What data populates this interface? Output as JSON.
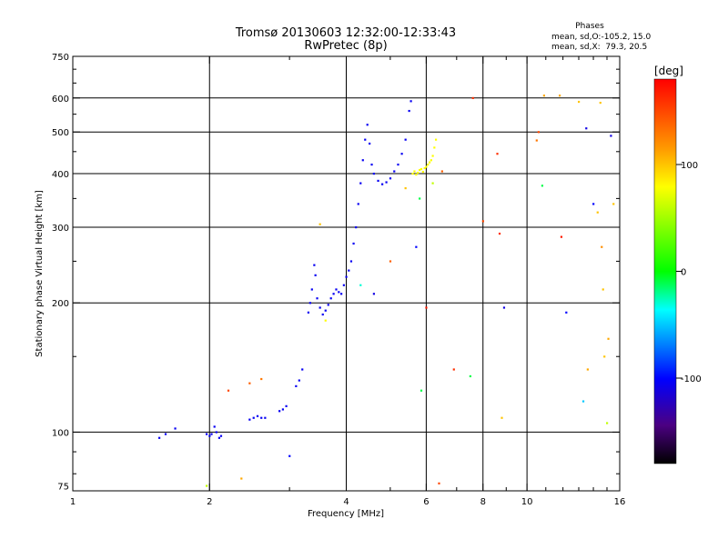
{
  "chart_data": {
    "type": "scatter",
    "title": "Tromsø 20130603 12:32:00-12:33:43",
    "subtitle": "RwPretec (8p)",
    "phases_header": "Phases",
    "phases_line1": "mean, sd,O:-105.2, 15.0",
    "phases_line2": "mean, sd,X:  79.3, 20.5",
    "xlabel": "Frequency [MHz]",
    "ylabel": "Stationary phase Virtual Height [km]",
    "xscale": "log",
    "yscale": "log",
    "xlim": [
      1,
      16
    ],
    "ylim": [
      73,
      750
    ],
    "xticks": [
      1,
      2,
      4,
      6,
      8,
      10,
      16
    ],
    "xtick_labels": [
      "1",
      "2",
      "4",
      "6",
      "8",
      "10",
      "16"
    ],
    "yticks": [
      75,
      100,
      200,
      300,
      400,
      500,
      600,
      750
    ],
    "ytick_labels": [
      "75",
      "100",
      "200",
      "300",
      "400",
      "500",
      "600",
      "750"
    ],
    "x_gridlines": [
      2,
      4,
      6,
      8,
      10
    ],
    "y_gridlines": [
      100,
      200,
      300,
      400,
      500,
      600
    ],
    "colorbar": {
      "label": "[deg]",
      "range": [
        -180,
        180
      ],
      "ticks": [
        100,
        0,
        -100
      ],
      "tick_labels": [
        "100",
        "0",
        "-100"
      ]
    },
    "series": [
      {
        "trace": "ordinary",
        "phase": -105,
        "points": [
          [
            1.55,
            97
          ],
          [
            1.6,
            99
          ],
          [
            1.68,
            102
          ],
          [
            1.97,
            99
          ],
          [
            2.0,
            98
          ],
          [
            2.02,
            99
          ],
          [
            2.05,
            103
          ],
          [
            2.07,
            100
          ],
          [
            2.1,
            97
          ],
          [
            2.12,
            98
          ],
          [
            2.45,
            107
          ],
          [
            2.5,
            108
          ],
          [
            2.55,
            109
          ],
          [
            2.6,
            108
          ],
          [
            2.65,
            108
          ],
          [
            2.85,
            112
          ],
          [
            2.9,
            113
          ],
          [
            2.95,
            115
          ],
          [
            3.1,
            128
          ],
          [
            3.15,
            132
          ],
          [
            3.2,
            140
          ],
          [
            3.3,
            190
          ],
          [
            3.33,
            200
          ],
          [
            3.36,
            215
          ],
          [
            3.4,
            245
          ],
          [
            3.42,
            232
          ],
          [
            3.45,
            205
          ],
          [
            3.5,
            195
          ],
          [
            3.55,
            188
          ],
          [
            3.6,
            192
          ],
          [
            3.65,
            198
          ],
          [
            3.7,
            205
          ],
          [
            3.75,
            210
          ],
          [
            3.8,
            215
          ],
          [
            3.85,
            212
          ],
          [
            3.9,
            210
          ],
          [
            3.95,
            220
          ],
          [
            4.0,
            230
          ],
          [
            4.05,
            238
          ],
          [
            4.1,
            250
          ],
          [
            4.15,
            275
          ],
          [
            4.2,
            300
          ],
          [
            4.25,
            340
          ],
          [
            4.3,
            380
          ],
          [
            4.35,
            430
          ],
          [
            4.4,
            480
          ],
          [
            4.45,
            520
          ],
          [
            4.5,
            470
          ],
          [
            4.55,
            420
          ],
          [
            4.6,
            400
          ],
          [
            4.7,
            385
          ],
          [
            4.8,
            378
          ],
          [
            4.9,
            382
          ],
          [
            5.0,
            390
          ],
          [
            5.1,
            405
          ],
          [
            5.2,
            420
          ],
          [
            5.3,
            445
          ],
          [
            5.4,
            480
          ],
          [
            5.5,
            560
          ],
          [
            5.55,
            590
          ]
        ]
      },
      {
        "trace": "extraordinary",
        "phase": 79,
        "points": [
          [
            5.6,
            400
          ],
          [
            5.65,
            405
          ],
          [
            5.7,
            398
          ],
          [
            5.75,
            402
          ],
          [
            5.8,
            408
          ],
          [
            5.85,
            410
          ],
          [
            5.9,
            404
          ],
          [
            5.95,
            412
          ],
          [
            6.0,
            415
          ],
          [
            6.05,
            420
          ],
          [
            6.1,
            425
          ],
          [
            6.15,
            430
          ],
          [
            6.2,
            440
          ],
          [
            6.25,
            460
          ],
          [
            6.3,
            480
          ]
        ]
      },
      {
        "trace": "scattered",
        "points": [
          [
            1.97,
            75,
            60
          ],
          [
            2.2,
            125,
            150
          ],
          [
            2.35,
            78,
            110
          ],
          [
            2.45,
            130,
            140
          ],
          [
            2.6,
            133,
            130
          ],
          [
            3.0,
            88,
            -100
          ],
          [
            3.5,
            305,
            100
          ],
          [
            3.6,
            182,
            80
          ],
          [
            4.3,
            220,
            -30
          ],
          [
            4.6,
            210,
            -110
          ],
          [
            5.0,
            250,
            140
          ],
          [
            5.4,
            370,
            100
          ],
          [
            5.7,
            270,
            -100
          ],
          [
            5.8,
            350,
            -10
          ],
          [
            5.85,
            125,
            -10
          ],
          [
            6.0,
            195,
            170
          ],
          [
            6.2,
            380,
            60
          ],
          [
            6.4,
            76,
            150
          ],
          [
            6.5,
            405,
            140
          ],
          [
            6.9,
            140,
            160
          ],
          [
            7.5,
            135,
            -10
          ],
          [
            7.6,
            600,
            160
          ],
          [
            8.0,
            310,
            150
          ],
          [
            8.6,
            445,
            160
          ],
          [
            8.7,
            290,
            160
          ],
          [
            8.8,
            108,
            100
          ],
          [
            8.9,
            195,
            -110
          ],
          [
            10.5,
            478,
            130
          ],
          [
            10.6,
            500,
            150
          ],
          [
            10.8,
            375,
            -10
          ],
          [
            10.9,
            608,
            110
          ],
          [
            11.8,
            608,
            110
          ],
          [
            11.9,
            285,
            170
          ],
          [
            12.2,
            190,
            -100
          ],
          [
            13.0,
            588,
            100
          ],
          [
            13.3,
            118,
            -50
          ],
          [
            13.5,
            510,
            -110
          ],
          [
            13.6,
            140,
            110
          ],
          [
            14.0,
            340,
            -100
          ],
          [
            14.3,
            325,
            100
          ],
          [
            14.5,
            585,
            100
          ],
          [
            14.6,
            270,
            120
          ],
          [
            14.7,
            215,
            100
          ],
          [
            14.8,
            150,
            100
          ],
          [
            15.0,
            105,
            60
          ],
          [
            15.1,
            165,
            110
          ],
          [
            15.3,
            490,
            -110
          ],
          [
            15.5,
            340,
            100
          ]
        ]
      }
    ]
  }
}
